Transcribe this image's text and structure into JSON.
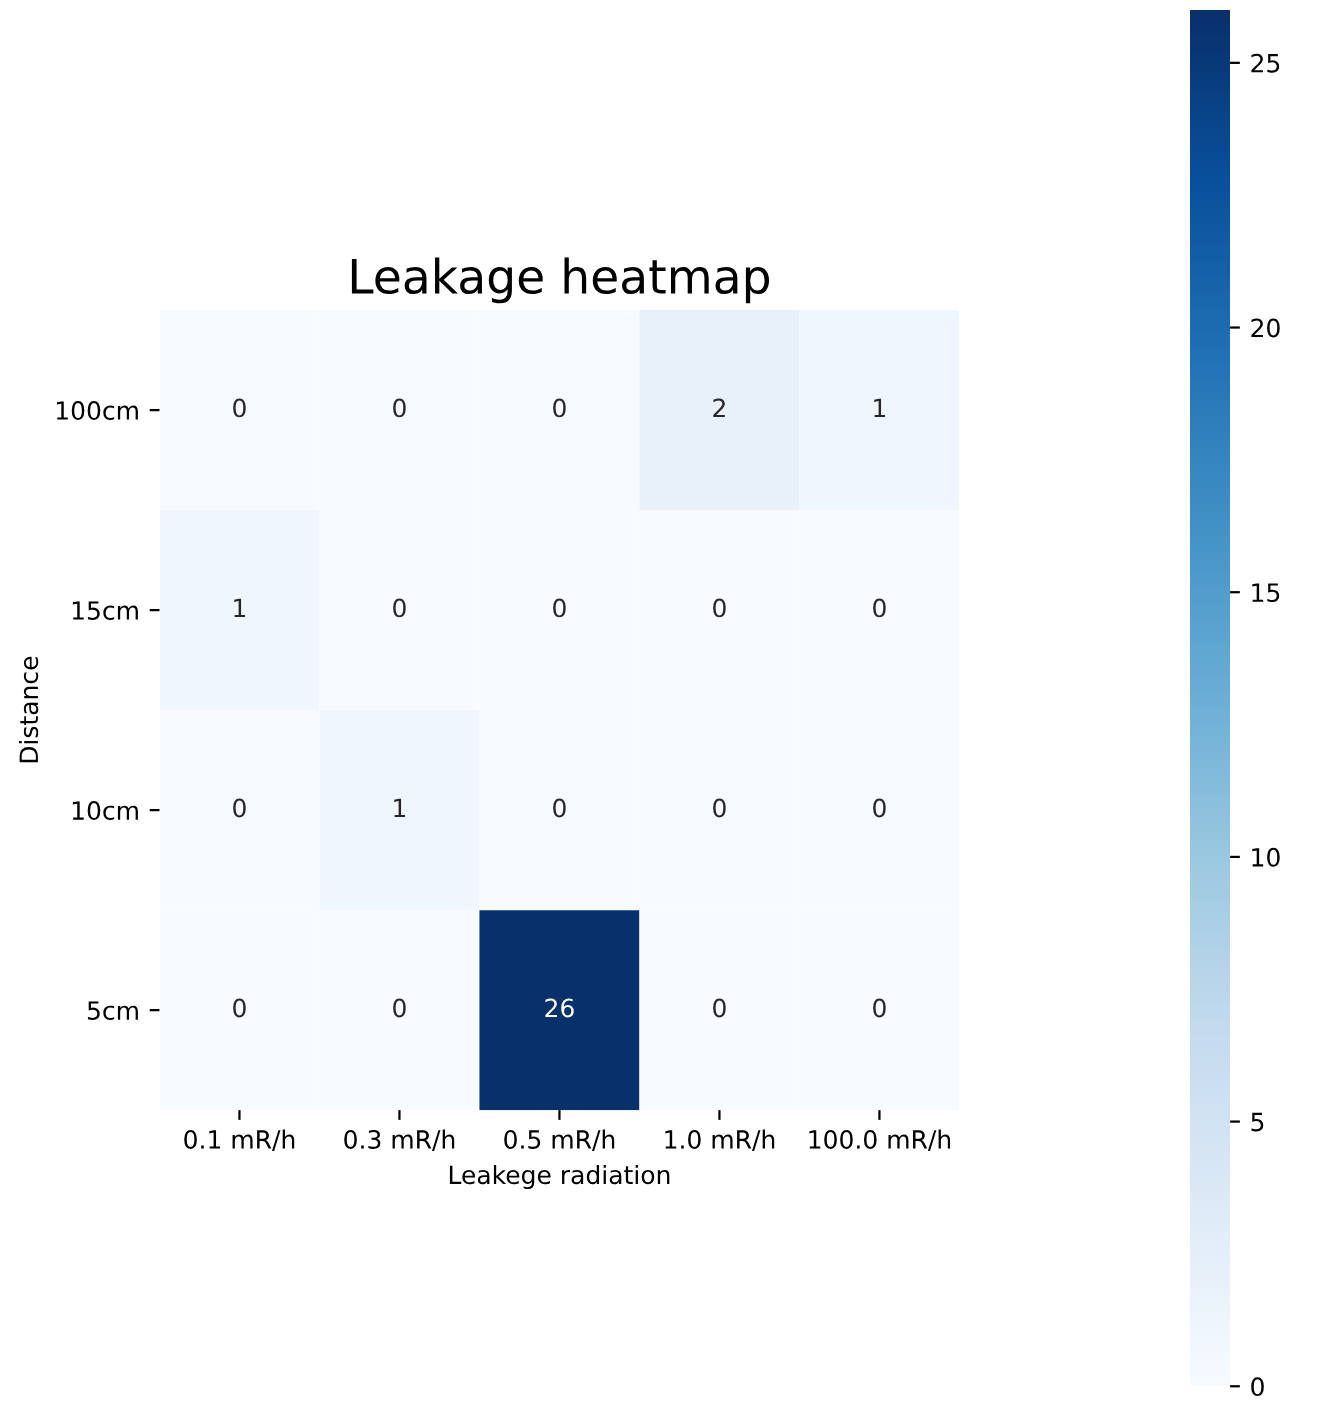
{
  "chart_data": {
    "type": "heatmap",
    "title": "Leakage heatmap",
    "xlabel": "Leakege radiation",
    "ylabel": "Distance",
    "categories": [
      "0.1 mR/h",
      "0.3 mR/h",
      "0.5 mR/h",
      "1.0 mR/h",
      "100.0 mR/h"
    ],
    "y_categories": [
      "100cm",
      "15cm",
      "10cm",
      "5cm"
    ],
    "cells": [
      [
        0,
        0,
        0,
        2,
        1
      ],
      [
        1,
        0,
        0,
        0,
        0
      ],
      [
        0,
        1,
        0,
        0,
        0
      ],
      [
        0,
        0,
        26,
        0,
        0
      ]
    ],
    "clim": [
      0,
      26
    ],
    "cticks": [
      0,
      5,
      10,
      15,
      20,
      25
    ],
    "data_labels": true
  }
}
